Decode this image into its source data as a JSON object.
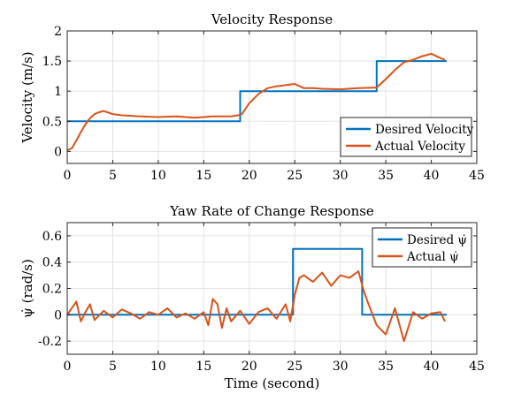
{
  "chart_data": [
    {
      "type": "line",
      "title": "Velocity Response",
      "xlabel": "",
      "ylabel": "Velocity (m/s)",
      "xlim": [
        0,
        45
      ],
      "ylim": [
        -0.2,
        2
      ],
      "xticks": [
        "0",
        "5",
        "10",
        "15",
        "20",
        "25",
        "30",
        "35",
        "40",
        "45"
      ],
      "yticks": [
        "0",
        "0.5",
        "1",
        "1.5",
        "2"
      ],
      "grid": true,
      "legend_position": "bottom-right",
      "series": [
        {
          "name": "Desired Velocity",
          "color": "#0072BD",
          "x": [
            0,
            19,
            19,
            34,
            34,
            41.7
          ],
          "y": [
            0.5,
            0.5,
            1.0,
            1.0,
            1.5,
            1.5
          ]
        },
        {
          "name": "Actual Velocity",
          "color": "#D95319",
          "x": [
            0,
            0.5,
            1,
            1.5,
            2,
            2.5,
            3,
            3.5,
            4,
            5,
            6,
            8,
            10,
            12,
            14,
            16,
            18,
            18.8,
            19.2,
            20,
            21,
            22,
            23,
            24,
            25,
            26,
            27,
            28,
            30,
            32,
            34,
            35,
            36,
            37,
            38,
            39,
            40,
            41,
            41.5
          ],
          "y": [
            0.02,
            0.05,
            0.18,
            0.32,
            0.45,
            0.55,
            0.62,
            0.65,
            0.67,
            0.62,
            0.6,
            0.58,
            0.57,
            0.58,
            0.56,
            0.58,
            0.58,
            0.6,
            0.62,
            0.8,
            0.95,
            1.05,
            1.08,
            1.1,
            1.12,
            1.05,
            1.05,
            1.04,
            1.03,
            1.05,
            1.06,
            1.2,
            1.35,
            1.48,
            1.52,
            1.58,
            1.62,
            1.55,
            1.52
          ]
        }
      ]
    },
    {
      "type": "line",
      "title": "Yaw Rate of Change Response",
      "xlabel": "Time (second)",
      "ylabel": "ψ̇ (rad/s)",
      "xlim": [
        0,
        45
      ],
      "ylim": [
        -0.3,
        0.7
      ],
      "xticks": [
        "0",
        "5",
        "10",
        "15",
        "20",
        "25",
        "30",
        "35",
        "40",
        "45"
      ],
      "yticks": [
        "-0.2",
        "0",
        "0.2",
        "0.4",
        "0.6"
      ],
      "grid": true,
      "legend_position": "top-right",
      "series": [
        {
          "name": "Desired ψ̇",
          "color": "#0072BD",
          "x": [
            0,
            24.8,
            24.8,
            32.4,
            32.4,
            41.7
          ],
          "y": [
            0,
            0,
            0.5,
            0.5,
            0,
            0
          ]
        },
        {
          "name": "Actual ψ̇",
          "color": "#D95319",
          "x": [
            0,
            0.5,
            1,
            1.5,
            2,
            2.5,
            3,
            4,
            5,
            6,
            7,
            8,
            9,
            10,
            11,
            12,
            13,
            14,
            15,
            15.5,
            16,
            16.5,
            17,
            17.5,
            18,
            19,
            20,
            21,
            22,
            23,
            24,
            24.5,
            25,
            25.5,
            26,
            27,
            28,
            29,
            30,
            31,
            32,
            32.5,
            33,
            34,
            35,
            35.5,
            36,
            37,
            38,
            39,
            40,
            41,
            41.5
          ],
          "y": [
            0.0,
            0.05,
            0.1,
            -0.05,
            0.02,
            0.08,
            -0.04,
            0.03,
            -0.02,
            0.04,
            0.01,
            -0.03,
            0.02,
            0.0,
            0.05,
            -0.02,
            0.01,
            -0.03,
            0.02,
            -0.08,
            0.12,
            0.08,
            -0.1,
            0.05,
            -0.05,
            0.03,
            -0.07,
            0.02,
            0.05,
            -0.03,
            0.08,
            -0.05,
            0.15,
            0.28,
            0.3,
            0.25,
            0.32,
            0.22,
            0.3,
            0.28,
            0.33,
            0.2,
            0.1,
            -0.08,
            -0.15,
            -0.05,
            0.05,
            -0.2,
            0.02,
            -0.03,
            0.01,
            0.02,
            -0.05
          ]
        }
      ]
    }
  ]
}
